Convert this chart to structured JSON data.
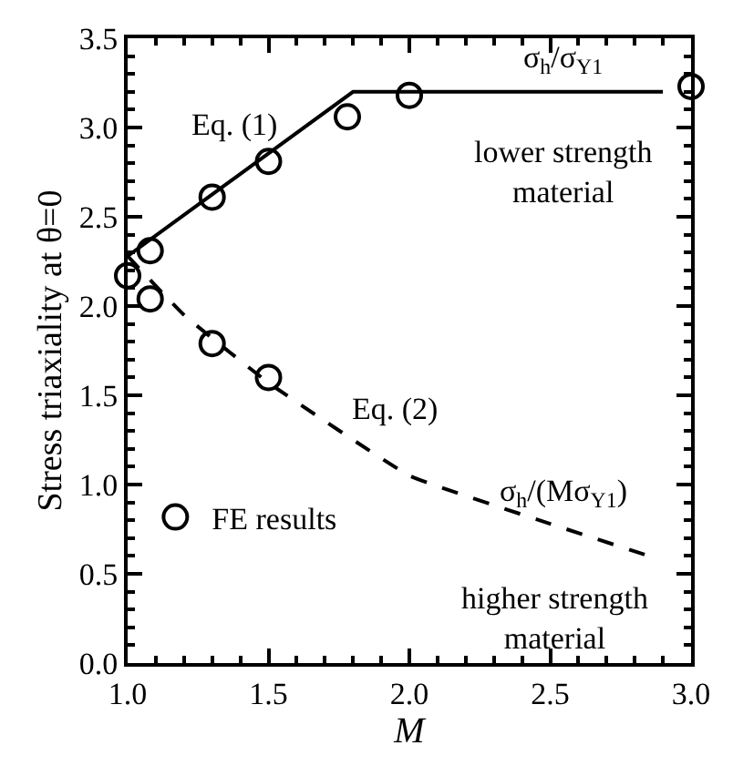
{
  "chart_data": {
    "type": "line",
    "xlabel": "M",
    "ylabel": "Stress triaxiality at θ=0",
    "xlim": [
      1.0,
      3.0
    ],
    "xticks": [
      {
        "value": 1,
        "label": "1.0"
      },
      1.5,
      {
        "value": 2,
        "label": "2.0"
      },
      2.5,
      {
        "value": 3,
        "label": "3.0"
      }
    ],
    "ylim": [
      0.0,
      3.5
    ],
    "yticks": [
      {
        "value": 0,
        "label": "0.0"
      },
      0.5,
      {
        "value": 1,
        "label": "1.0"
      },
      1.5,
      {
        "value": 2,
        "label": "2.0"
      },
      2.5,
      {
        "value": 3,
        "label": "3.0"
      },
      3.5
    ],
    "legend": "bottom left",
    "series": [
      {
        "name": "FE results",
        "type": "scatter",
        "marker": "circle",
        "color": "#000000",
        "x": [
          1.0,
          1.08,
          1.3,
          1.5,
          1.78,
          2.0,
          3.0,
          1.08,
          1.3,
          1.5
        ],
        "values": [
          2.17,
          2.31,
          2.61,
          2.81,
          3.06,
          3.18,
          3.23,
          2.04,
          1.79,
          1.6
        ]
      },
      {
        "color": "#000000",
        "line_style": "solid",
        "x": [
          1.0,
          1.8,
          2.9
        ],
        "values": [
          2.28,
          3.2,
          3.2
        ]
      },
      {
        "color": "#000000",
        "line_style": "dashed",
        "x": [
          1.0,
          1.2,
          1.5,
          2.0,
          2.5,
          2.85
        ],
        "values": [
          2.28,
          1.95,
          1.57,
          1.05,
          0.78,
          0.6
        ]
      }
    ],
    "annotations": [
      "Eq. (1)",
      "σ$_{h}$/σ$_{Y1}$",
      "lower strength\nmaterial",
      "Eq. (2)",
      "σ$_{h}$/(Mσ$_{Y1}$)",
      "higher strength\nmaterial"
    ]
  }
}
